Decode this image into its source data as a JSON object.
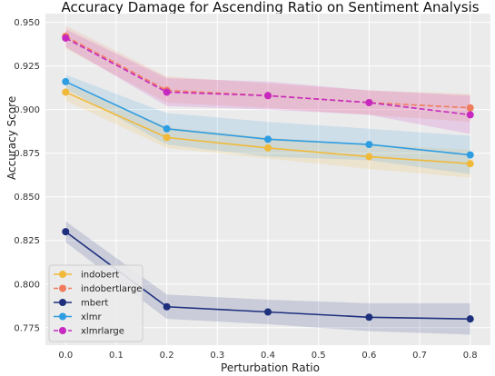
{
  "chart_data": {
    "type": "line",
    "title": "Accuracy Damage for Ascending Ratio on Sentiment Analysis",
    "xlabel": "Perturbation Ratio",
    "ylabel": "Accuracy Score",
    "x": [
      0.0,
      0.2,
      0.4,
      0.6,
      0.8
    ],
    "xlim": [
      -0.04,
      0.84
    ],
    "ylim": [
      0.765,
      0.955
    ],
    "xticks": [
      "0.0",
      "0.1",
      "0.2",
      "0.3",
      "0.4",
      "0.5",
      "0.6",
      "0.7",
      "0.8"
    ],
    "yticks": [
      "0.775",
      "0.800",
      "0.825",
      "0.850",
      "0.875",
      "0.900",
      "0.925",
      "0.950"
    ],
    "grid": true,
    "legend_position": "lower-left",
    "series": [
      {
        "name": "indobert",
        "color": "#f0b93a",
        "dashed": false,
        "values": [
          0.91,
          0.884,
          0.878,
          0.873,
          0.869
        ],
        "lower": [
          0.905,
          0.878,
          0.872,
          0.866,
          0.861
        ],
        "upper": [
          0.915,
          0.89,
          0.884,
          0.88,
          0.877
        ]
      },
      {
        "name": "indobertlarge",
        "color": "#f07c5e",
        "dashed": true,
        "values": [
          0.942,
          0.911,
          0.908,
          0.904,
          0.901
        ],
        "lower": [
          0.935,
          0.904,
          0.901,
          0.897,
          0.893
        ],
        "upper": [
          0.948,
          0.919,
          0.915,
          0.911,
          0.909
        ]
      },
      {
        "name": "mbert",
        "color": "#1e2f7d",
        "dashed": false,
        "values": [
          0.83,
          0.787,
          0.784,
          0.781,
          0.78
        ],
        "lower": [
          0.824,
          0.78,
          0.777,
          0.773,
          0.771
        ],
        "upper": [
          0.836,
          0.794,
          0.791,
          0.789,
          0.789
        ]
      },
      {
        "name": "xlmr",
        "color": "#2f9de2",
        "dashed": false,
        "values": [
          0.916,
          0.889,
          0.883,
          0.88,
          0.874
        ],
        "lower": [
          0.912,
          0.88,
          0.873,
          0.871,
          0.863
        ],
        "upper": [
          0.92,
          0.898,
          0.893,
          0.889,
          0.885
        ]
      },
      {
        "name": "xlmrlarge",
        "color": "#c628c0",
        "dashed": true,
        "values": [
          0.941,
          0.91,
          0.908,
          0.904,
          0.897
        ],
        "lower": [
          0.936,
          0.902,
          0.9,
          0.897,
          0.886
        ],
        "upper": [
          0.946,
          0.918,
          0.916,
          0.911,
          0.908
        ]
      }
    ]
  }
}
